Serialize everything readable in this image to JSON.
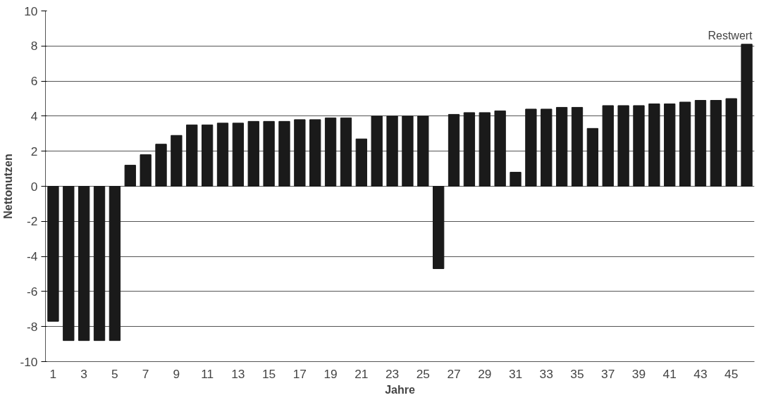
{
  "chart_data": {
    "type": "bar",
    "xlabel": "Jahre",
    "ylabel": "Nettonutzen",
    "x": [
      1,
      2,
      3,
      4,
      5,
      6,
      7,
      8,
      9,
      10,
      11,
      12,
      13,
      14,
      15,
      16,
      17,
      18,
      19,
      20,
      21,
      22,
      23,
      24,
      25,
      26,
      27,
      28,
      29,
      30,
      31,
      32,
      33,
      34,
      35,
      36,
      37,
      38,
      39,
      40,
      41,
      42,
      43,
      44,
      45,
      46
    ],
    "values": [
      -7.7,
      -8.8,
      -8.8,
      -8.8,
      -8.8,
      1.2,
      1.8,
      2.4,
      2.9,
      3.5,
      3.5,
      3.6,
      3.6,
      3.7,
      3.7,
      3.7,
      3.8,
      3.8,
      3.9,
      3.9,
      2.7,
      4.0,
      4.0,
      4.0,
      4.0,
      -4.7,
      4.1,
      4.2,
      4.2,
      4.3,
      0.8,
      4.4,
      4.4,
      4.5,
      4.5,
      3.3,
      4.6,
      4.6,
      4.6,
      4.7,
      4.7,
      4.8,
      4.9,
      4.9,
      5.0,
      8.1
    ],
    "color": "#1a1a1a",
    "xlim": [
      0.5,
      46.5
    ],
    "xticks": [
      1,
      3,
      5,
      7,
      9,
      11,
      13,
      15,
      17,
      19,
      21,
      23,
      25,
      27,
      29,
      31,
      33,
      35,
      37,
      39,
      41,
      43,
      45
    ],
    "ylim": [
      -10,
      10
    ],
    "yticks": [
      -10,
      -8,
      -6,
      -4,
      -2,
      0,
      2,
      4,
      6,
      8,
      10
    ],
    "grid": "y",
    "annotations": [
      {
        "text": "Restwert",
        "x": 46,
        "y": 8.1
      }
    ]
  }
}
